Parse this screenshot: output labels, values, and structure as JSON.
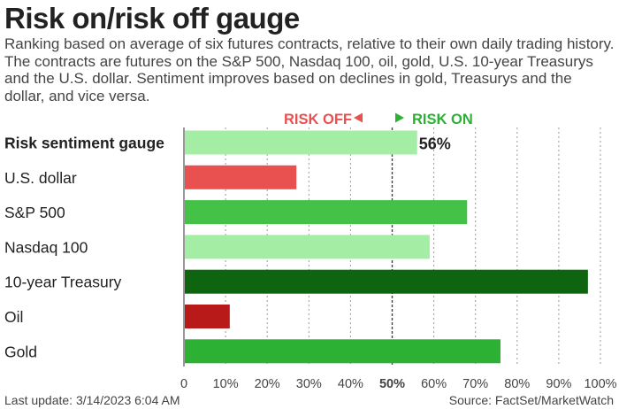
{
  "header": {
    "title": "Risk on/risk off gauge",
    "subtitle": "Ranking based on average of six futures contracts, relative to their own daily trading history. The contracts are futures on the S&P 500, Nasdaq 100, oil, gold, U.S. 10-year Treasurys and the U.S. dollar. Sentiment improves based on declines in gold, Treasurys and the dollar, and vice versa."
  },
  "legend": {
    "risk_off_label": "RISK OFF",
    "risk_on_label": "RISK ON",
    "risk_off_color": "#e8514f",
    "risk_on_color": "#2db135"
  },
  "footer": {
    "last_update": "Last update: 3/14/2023 6:04 AM",
    "source": "Source: FactSet/MarketWatch"
  },
  "chart_data": {
    "type": "bar",
    "orientation": "horizontal",
    "categories": [
      "Risk sentiment gauge",
      "U.S. dollar",
      "S&P 500",
      "Nasdaq 100",
      "10-year Treasury",
      "Oil",
      "Gold"
    ],
    "values": [
      56,
      27,
      68,
      59,
      97,
      11,
      76
    ],
    "colors": [
      "#a3eea4",
      "#e8514f",
      "#44c247",
      "#a3eea4",
      "#0f6410",
      "#b71a18",
      "#2db135"
    ],
    "value_labels": [
      "56%",
      "",
      "",
      "",
      "",
      "",
      ""
    ],
    "xlim": [
      0,
      100
    ],
    "xticks": [
      0,
      10,
      20,
      30,
      40,
      50,
      60,
      70,
      80,
      90,
      100
    ],
    "xtick_labels": [
      "0",
      "10%",
      "20%",
      "30%",
      "40%",
      "50%",
      "60%",
      "70%",
      "80%",
      "90%",
      "100%"
    ],
    "grid": true
  }
}
